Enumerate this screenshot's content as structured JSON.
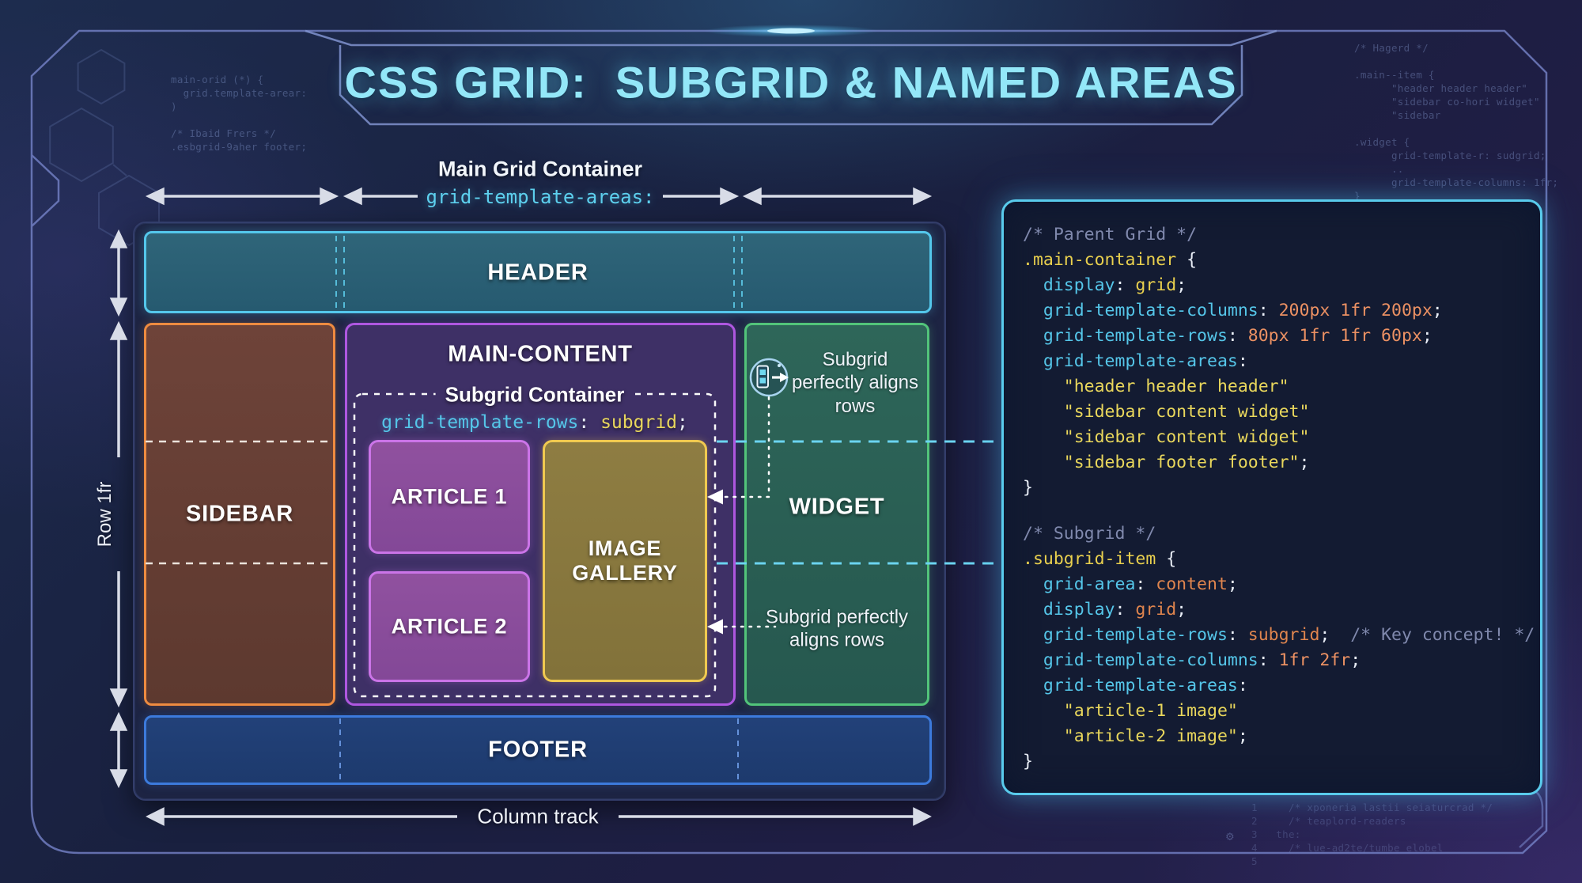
{
  "title": "CSS GRID:  SUBGRID & NAMED AREAS",
  "diagram": {
    "main_grid_label": "Main Grid Container",
    "main_grid_code": "grid-template-areas:",
    "row_track_label": "Row 1fr",
    "column_track_label": "Column track",
    "subgrid_container_label": "Subgrid Container",
    "subgrid_container_code": [
      [
        "p",
        "grid-template-rows"
      ],
      [
        "w",
        ": "
      ],
      [
        "y",
        "subgrid"
      ],
      [
        "w",
        ";"
      ]
    ],
    "widget_note_top": "Subgrid perfectly aligns rows",
    "widget_note_bottom": "Subgrid perfectly aligns rows",
    "areas": {
      "header": "HEADER",
      "sidebar": "SIDEBAR",
      "main_content": "MAIN-CONTENT",
      "article_1": "ARTICLE 1",
      "article_2": "ARTICLE 2",
      "image_gallery": "IMAGE GALLERY",
      "widget": "WIDGET",
      "footer": "FOOTER"
    }
  },
  "code_panel": {
    "parent_block": [
      [
        [
          "c",
          "/* Parent Grid */"
        ]
      ],
      [
        [
          "s",
          ".main-container"
        ],
        [
          "w",
          " {"
        ]
      ],
      [
        [
          "w",
          "  "
        ],
        [
          "p",
          "display"
        ],
        [
          "w",
          ": "
        ],
        [
          "s",
          "grid"
        ],
        [
          "w",
          ";"
        ]
      ],
      [
        [
          "w",
          "  "
        ],
        [
          "p",
          "grid-template-columns"
        ],
        [
          "w",
          ": "
        ],
        [
          "n",
          "200px 1fr 200px"
        ],
        [
          "w",
          ";"
        ]
      ],
      [
        [
          "w",
          "  "
        ],
        [
          "p",
          "grid-template-rows"
        ],
        [
          "w",
          ": "
        ],
        [
          "n",
          "80px 1fr 1fr 60px"
        ],
        [
          "w",
          ";"
        ]
      ],
      [
        [
          "w",
          "  "
        ],
        [
          "p",
          "grid-template-areas"
        ],
        [
          "w",
          ":"
        ]
      ],
      [
        [
          "w",
          "    "
        ],
        [
          "y",
          "\"header header header\""
        ]
      ],
      [
        [
          "w",
          "    "
        ],
        [
          "y",
          "\"sidebar content widget\""
        ]
      ],
      [
        [
          "w",
          "    "
        ],
        [
          "y",
          "\"sidebar content widget\""
        ]
      ],
      [
        [
          "w",
          "    "
        ],
        [
          "y",
          "\"sidebar footer footer\""
        ],
        [
          "w",
          ";"
        ]
      ],
      [
        [
          "w",
          "}"
        ]
      ]
    ],
    "subgrid_block": [
      [
        [
          "c",
          "/* Subgrid */"
        ]
      ],
      [
        [
          "s",
          ".subgrid-item"
        ],
        [
          "w",
          " {"
        ]
      ],
      [
        [
          "w",
          "  "
        ],
        [
          "p",
          "grid-area"
        ],
        [
          "w",
          ": "
        ],
        [
          "o",
          "content"
        ],
        [
          "w",
          ";"
        ]
      ],
      [
        [
          "w",
          "  "
        ],
        [
          "p",
          "display"
        ],
        [
          "w",
          ": "
        ],
        [
          "o",
          "grid"
        ],
        [
          "w",
          ";"
        ]
      ],
      [
        [
          "w",
          "  "
        ],
        [
          "p",
          "grid-template-rows"
        ],
        [
          "w",
          ": "
        ],
        [
          "o",
          "subgrid"
        ],
        [
          "w",
          ";  "
        ],
        [
          "c",
          "/* Key concept! */"
        ]
      ],
      [
        [
          "w",
          "  "
        ],
        [
          "p",
          "grid-template-columns"
        ],
        [
          "w",
          ": "
        ],
        [
          "n",
          "1fr 2fr"
        ],
        [
          "w",
          ";"
        ]
      ],
      [
        [
          "w",
          "  "
        ],
        [
          "p",
          "grid-template-areas"
        ],
        [
          "w",
          ":"
        ]
      ],
      [
        [
          "w",
          "    "
        ],
        [
          "y",
          "\"article-1 image\""
        ]
      ],
      [
        [
          "w",
          "    "
        ],
        [
          "y",
          "\"article-2 image\""
        ],
        [
          "w",
          ";"
        ]
      ],
      [
        [
          "w",
          "}"
        ]
      ]
    ]
  },
  "decor": {
    "top_left_code": [
      "main-orid (*) {",
      "  grid.template-arear:",
      ")",
      "",
      "/* Ibaid Frers */",
      ".esbgrid-9aher footer;"
    ],
    "top_right_code": [
      "/* Hagerd */",
      "",
      ".main--item {",
      "      \"header header header\"",
      "      \"sidebar co-hori widget\"",
      "      \"sidebar",
      "",
      ".widget {",
      "      grid-template-r: sudgrid;",
      "      ..",
      "      grid-template-columns: 1fr;",
      "}",
      "        ..",
      "      .."
    ],
    "bottom_right_code": [
      "1     /* xponeria lastii seiaturcrad */",
      "2     /* teaplord-readers",
      "3   the:",
      "4     /* lue-ad2te/tumbe elobel",
      "5"
    ],
    "gear_icon": "⚙"
  },
  "colors": {
    "title_cyan": "#93e7f8",
    "accent_cyan": "#59cbec",
    "header_border": "#54c7eb",
    "sidebar_border": "#ee8b40",
    "main_content_border": "#ae57e0",
    "article_border": "#cb74e8",
    "gallery_border": "#f0c950",
    "widget_border": "#52c47a",
    "footer_border": "#3c7adc",
    "code_comment": "#8089ad",
    "code_selector": "#e9d04e",
    "code_property": "#55c6e9",
    "code_number": "#ec9163",
    "code_orange": "#e0854e",
    "code_string": "#e9d75c"
  }
}
